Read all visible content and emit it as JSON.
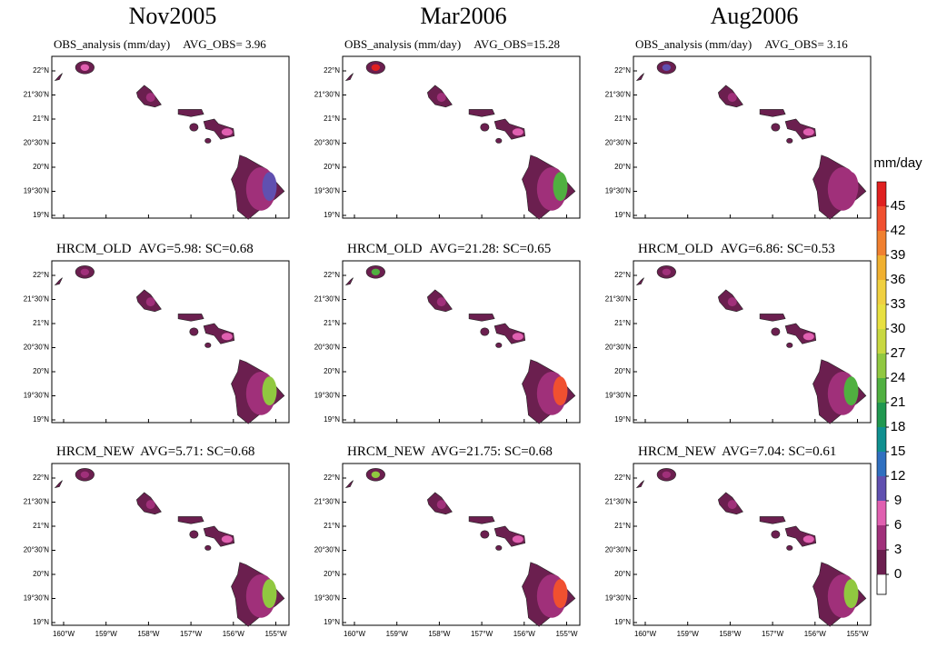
{
  "columns": [
    "Nov2005",
    "Mar2006",
    "Aug2006"
  ],
  "panels": [
    [
      {
        "label": "OBS_analysis (mm/day)",
        "stat": "AVG_OBS= 3.96"
      },
      {
        "label": "OBS_analysis (mm/day)",
        "stat": "AVG_OBS=15.28"
      },
      {
        "label": "OBS_analysis (mm/day)",
        "stat": "AVG_OBS= 3.16"
      }
    ],
    [
      {
        "label": "HRCM_OLD",
        "stat": "AVG=5.98: SC=0.68"
      },
      {
        "label": "HRCM_OLD",
        "stat": "AVG=21.28: SC=0.65"
      },
      {
        "label": "HRCM_OLD",
        "stat": "AVG=6.86: SC=0.53"
      }
    ],
    [
      {
        "label": "HRCM_NEW",
        "stat": "AVG=5.71: SC=0.68"
      },
      {
        "label": "HRCM_NEW",
        "stat": "AVG=21.75: SC=0.68"
      },
      {
        "label": "HRCM_NEW",
        "stat": "AVG=7.04: SC=0.61"
      }
    ]
  ],
  "yticks": [
    "22°N",
    "21°30'N",
    "21°N",
    "20°30'N",
    "20°N",
    "19°30'N",
    "19°N"
  ],
  "xticks": [
    "160°W",
    "159°W",
    "158°W",
    "157°W",
    "156°W",
    "155°W"
  ],
  "colorbar": {
    "label": "mm/day",
    "ticks": [
      0,
      3,
      6,
      9,
      12,
      15,
      18,
      21,
      24,
      27,
      30,
      33,
      36,
      39,
      42,
      45
    ]
  }
}
